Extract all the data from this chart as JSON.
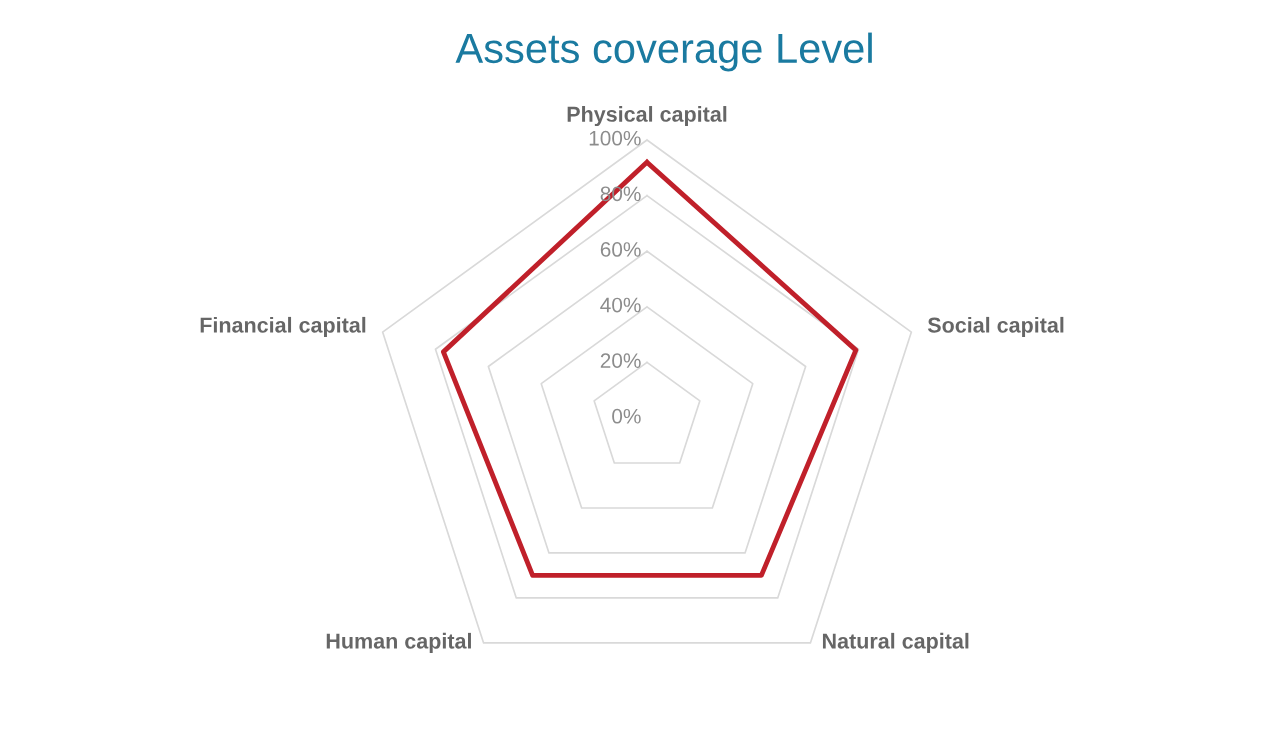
{
  "chart_data": {
    "type": "radar",
    "title": "Assets coverage Level",
    "categories": [
      "Physical capital",
      "Social capital",
      "Natural capital",
      "Human capital",
      "Financial capital"
    ],
    "series": [
      {
        "color": "#c0202a",
        "values": [
          92,
          79,
          70,
          70,
          77
        ]
      }
    ],
    "ylim": [
      0,
      100
    ],
    "yticks": [
      {
        "value": 0,
        "label": "0%"
      },
      {
        "value": 20,
        "label": "20%"
      },
      {
        "value": 40,
        "label": "40%"
      },
      {
        "value": 60,
        "label": "60%"
      },
      {
        "value": 80,
        "label": "80%"
      },
      {
        "value": 100,
        "label": "100%"
      }
    ],
    "grid": true,
    "marker": "none",
    "line_style": "solid"
  }
}
